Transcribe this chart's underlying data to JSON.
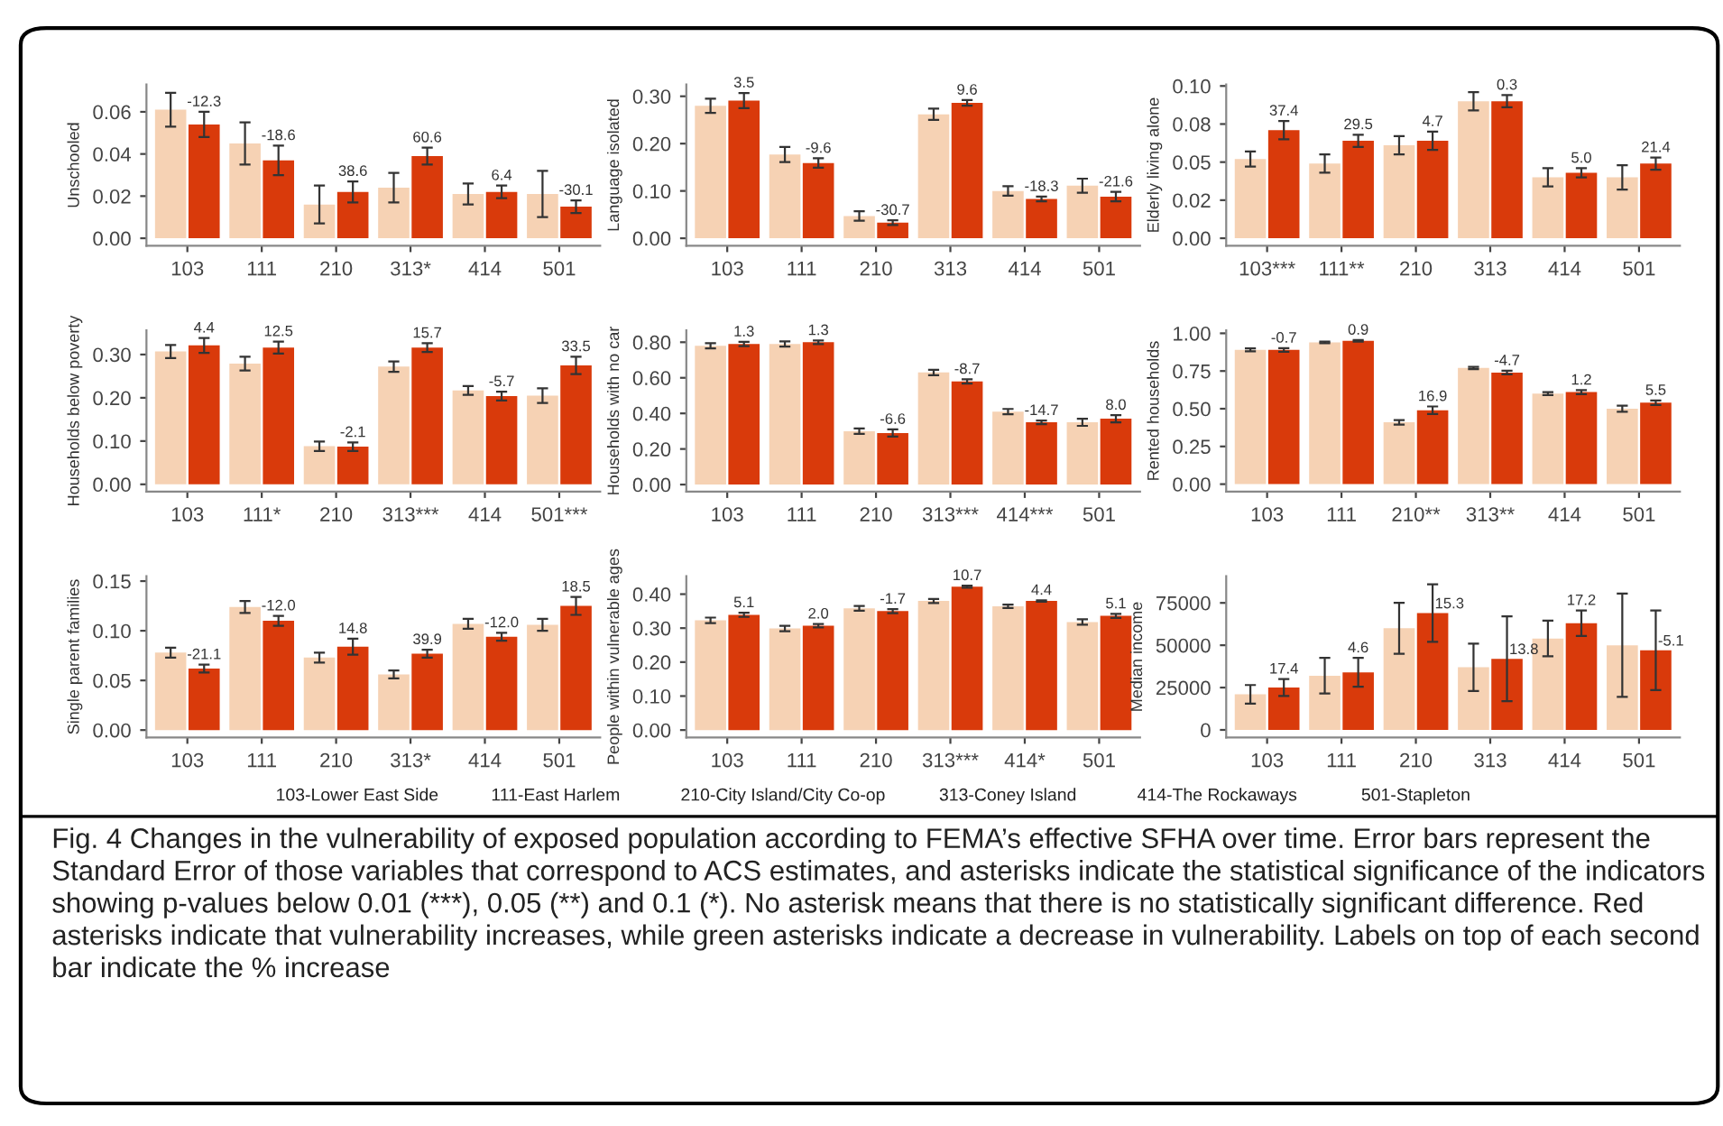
{
  "chart_data": [
    {
      "type": "bar",
      "ylabel": "Unschooled",
      "categories": [
        "103",
        "111",
        "210",
        "313*",
        "414",
        "501"
      ],
      "ylim": [
        -0.0036,
        0.073
      ],
      "yticks": [
        {
          "value": 0,
          "label": "0.00"
        },
        {
          "value": 0.02,
          "label": "0.02"
        },
        {
          "value": 0.04,
          "label": "0.04"
        },
        {
          "value": 0.06,
          "label": "0.06"
        }
      ],
      "series": [
        {
          "color": "#f6d2b4",
          "values": [
            0.061,
            0.045,
            0.016,
            0.024,
            0.021,
            0.021
          ],
          "errors": [
            0.008,
            0.01,
            0.009,
            0.007,
            0.005,
            0.011
          ]
        },
        {
          "color": "#d93a0b",
          "values": [
            0.054,
            0.037,
            0.022,
            0.039,
            0.022,
            0.015
          ],
          "errors": [
            0.006,
            0.007,
            0.005,
            0.004,
            0.003,
            0.003
          ]
        }
      ],
      "annotations": [
        {
          "text": "-12.3",
          "x": "103",
          "y": 0.054
        },
        {
          "text": "-18.6",
          "x": "111",
          "y": 0.037
        },
        {
          "text": "38.6",
          "x": "210",
          "y": 0.022
        },
        {
          "text": "60.6",
          "x": "313*",
          "y": 0.039
        },
        {
          "text": "6.4",
          "x": "414",
          "y": 0.022
        },
        {
          "text": "-30.1",
          "x": "501",
          "y": 0.015
        }
      ]
    },
    {
      "type": "bar",
      "ylabel": "Language isolated",
      "categories": [
        "103",
        "111",
        "210",
        "313",
        "414",
        "501"
      ],
      "ylim": [
        -0.016,
        0.325
      ],
      "yticks": [
        {
          "value": 0,
          "label": "0.00"
        },
        {
          "value": 0.1,
          "label": "0.10"
        },
        {
          "value": 0.2,
          "label": "0.20"
        },
        {
          "value": 0.3,
          "label": "0.30"
        }
      ],
      "series": [
        {
          "color": "#f6d2b4",
          "values": [
            0.28,
            0.177,
            0.047,
            0.262,
            0.1,
            0.111
          ],
          "errors": [
            0.015,
            0.016,
            0.01,
            0.012,
            0.01,
            0.015
          ]
        },
        {
          "color": "#d93a0b",
          "values": [
            0.291,
            0.159,
            0.033,
            0.286,
            0.083,
            0.088
          ],
          "errors": [
            0.016,
            0.01,
            0.005,
            0.006,
            0.005,
            0.01
          ]
        }
      ],
      "annotations": [
        {
          "text": "3.5",
          "x": "103",
          "y": 0.291
        },
        {
          "text": "-9.6",
          "x": "111",
          "y": 0.159
        },
        {
          "text": "-30.7",
          "x": "210",
          "y": 0.033
        },
        {
          "text": "9.6",
          "x": "313",
          "y": 0.286
        },
        {
          "text": "-18.3",
          "x": "414",
          "y": 0.083
        },
        {
          "text": "-21.6",
          "x": "501",
          "y": 0.088
        }
      ]
    },
    {
      "type": "bar",
      "ylabel": "Elderly living alone",
      "categories": [
        "103***",
        "111**",
        "210",
        "313",
        "414",
        "501"
      ],
      "ylim": [
        -0.005,
        0.101
      ],
      "yticks": [
        {
          "value": 0,
          "label": "0.00"
        },
        {
          "value": 0.025,
          "label": "0.02"
        },
        {
          "value": 0.05,
          "label": "0.05"
        },
        {
          "value": 0.075,
          "label": "0.08"
        },
        {
          "value": 0.1,
          "label": "0.10"
        }
      ],
      "series": [
        {
          "color": "#f6d2b4",
          "values": [
            0.052,
            0.049,
            0.061,
            0.09,
            0.04,
            0.04
          ],
          "errors": [
            0.005,
            0.006,
            0.006,
            0.006,
            0.006,
            0.008
          ]
        },
        {
          "color": "#d93a0b",
          "values": [
            0.071,
            0.064,
            0.064,
            0.09,
            0.043,
            0.049
          ],
          "errors": [
            0.006,
            0.004,
            0.006,
            0.004,
            0.003,
            0.004
          ]
        }
      ],
      "annotations": [
        {
          "text": "37.4",
          "x": "103***",
          "y": 0.071
        },
        {
          "text": "29.5",
          "x": "111**",
          "y": 0.064
        },
        {
          "text": "4.7",
          "x": "210",
          "y": 0.064
        },
        {
          "text": "0.3",
          "x": "313",
          "y": 0.09
        },
        {
          "text": "5.0",
          "x": "414",
          "y": 0.043
        },
        {
          "text": "21.4",
          "x": "501",
          "y": 0.049
        }
      ]
    },
    {
      "type": "bar",
      "ylabel": "Households below poverty",
      "categories": [
        "103",
        "111*",
        "210",
        "313***",
        "414",
        "501***"
      ],
      "ylim": [
        -0.017,
        0.356
      ],
      "yticks": [
        {
          "value": 0,
          "label": "0.00"
        },
        {
          "value": 0.1,
          "label": "0.10"
        },
        {
          "value": 0.2,
          "label": "0.20"
        },
        {
          "value": 0.3,
          "label": "0.30"
        }
      ],
      "series": [
        {
          "color": "#f6d2b4",
          "values": [
            0.307,
            0.279,
            0.088,
            0.272,
            0.217,
            0.205
          ],
          "errors": [
            0.015,
            0.016,
            0.011,
            0.012,
            0.01,
            0.017
          ]
        },
        {
          "color": "#d93a0b",
          "values": [
            0.321,
            0.316,
            0.087,
            0.316,
            0.204,
            0.275
          ],
          "errors": [
            0.017,
            0.014,
            0.01,
            0.01,
            0.01,
            0.02
          ]
        }
      ],
      "annotations": [
        {
          "text": "4.4",
          "x": "103",
          "y": 0.321
        },
        {
          "text": "12.5",
          "x": "111*",
          "y": 0.316
        },
        {
          "text": "-2.1",
          "x": "210",
          "y": 0.087
        },
        {
          "text": "15.7",
          "x": "313***",
          "y": 0.316
        },
        {
          "text": "-5.7",
          "x": "414",
          "y": 0.204
        },
        {
          "text": "33.5",
          "x": "501***",
          "y": 0.275
        }
      ]
    },
    {
      "type": "bar",
      "ylabel": "Households with no car",
      "categories": [
        "103",
        "111",
        "210",
        "313***",
        "414***",
        "501"
      ],
      "ylim": [
        -0.04,
        0.867
      ],
      "yticks": [
        {
          "value": 0,
          "label": "0.00"
        },
        {
          "value": 0.2,
          "label": "0.20"
        },
        {
          "value": 0.4,
          "label": "0.40"
        },
        {
          "value": 0.6,
          "label": "0.60"
        },
        {
          "value": 0.8,
          "label": "0.80"
        }
      ],
      "series": [
        {
          "color": "#f6d2b4",
          "values": [
            0.78,
            0.79,
            0.3,
            0.63,
            0.41,
            0.35
          ],
          "errors": [
            0.015,
            0.015,
            0.015,
            0.015,
            0.015,
            0.02
          ]
        },
        {
          "color": "#d93a0b",
          "values": [
            0.79,
            0.8,
            0.29,
            0.58,
            0.35,
            0.37
          ],
          "errors": [
            0.012,
            0.01,
            0.02,
            0.012,
            0.01,
            0.02
          ]
        }
      ],
      "annotations": [
        {
          "text": "1.3",
          "x": "103",
          "y": 0.79
        },
        {
          "text": "1.3",
          "x": "111",
          "y": 0.8
        },
        {
          "text": "-6.6",
          "x": "210",
          "y": 0.29
        },
        {
          "text": "-8.7",
          "x": "313***",
          "y": 0.58
        },
        {
          "text": "-14.7",
          "x": "414***",
          "y": 0.35
        },
        {
          "text": "8.0",
          "x": "501",
          "y": 0.37
        }
      ]
    },
    {
      "type": "bar",
      "ylabel": "Rented households",
      "categories": [
        "103",
        "111",
        "210**",
        "313**",
        "414",
        "501"
      ],
      "ylim": [
        -0.05,
        1.02
      ],
      "yticks": [
        {
          "value": 0,
          "label": "0.00"
        },
        {
          "value": 0.25,
          "label": "0.25"
        },
        {
          "value": 0.5,
          "label": "0.50"
        },
        {
          "value": 0.75,
          "label": "0.75"
        },
        {
          "value": 1.0,
          "label": "1.00"
        }
      ],
      "series": [
        {
          "color": "#f6d2b4",
          "values": [
            0.89,
            0.94,
            0.41,
            0.77,
            0.6,
            0.5
          ],
          "errors": [
            0.01,
            0.005,
            0.015,
            0.008,
            0.01,
            0.02
          ]
        },
        {
          "color": "#d93a0b",
          "values": [
            0.89,
            0.95,
            0.49,
            0.74,
            0.61,
            0.54
          ],
          "errors": [
            0.012,
            0.005,
            0.025,
            0.012,
            0.013,
            0.015
          ]
        }
      ],
      "annotations": [
        {
          "text": "-0.7",
          "x": "103",
          "y": 0.89
        },
        {
          "text": "0.9",
          "x": "111",
          "y": 0.95
        },
        {
          "text": "16.9",
          "x": "210**",
          "y": 0.49
        },
        {
          "text": "-4.7",
          "x": "313**",
          "y": 0.74
        },
        {
          "text": "1.2",
          "x": "414",
          "y": 0.61
        },
        {
          "text": "5.5",
          "x": "501",
          "y": 0.54
        }
      ]
    },
    {
      "type": "bar",
      "ylabel": "Single parent families",
      "categories": [
        "103",
        "111",
        "210",
        "313*",
        "414",
        "501"
      ],
      "ylim": [
        -0.0075,
        0.155
      ],
      "yticks": [
        {
          "value": 0,
          "label": "0.00"
        },
        {
          "value": 0.05,
          "label": "0.05"
        },
        {
          "value": 0.1,
          "label": "0.10"
        },
        {
          "value": 0.15,
          "label": "0.15"
        }
      ],
      "series": [
        {
          "color": "#f6d2b4",
          "values": [
            0.078,
            0.124,
            0.073,
            0.056,
            0.107,
            0.106
          ],
          "errors": [
            0.005,
            0.006,
            0.005,
            0.004,
            0.005,
            0.006
          ]
        },
        {
          "color": "#d93a0b",
          "values": [
            0.062,
            0.11,
            0.084,
            0.077,
            0.094,
            0.125
          ],
          "errors": [
            0.004,
            0.005,
            0.008,
            0.004,
            0.004,
            0.009
          ]
        }
      ],
      "annotations": [
        {
          "text": "-21.1",
          "x": "103",
          "y": 0.062
        },
        {
          "text": "-12.0",
          "x": "111",
          "y": 0.11
        },
        {
          "text": "14.8",
          "x": "210",
          "y": 0.084
        },
        {
          "text": "39.9",
          "x": "313*",
          "y": 0.077
        },
        {
          "text": "-12.0",
          "x": "414",
          "y": 0.094
        },
        {
          "text": "18.5",
          "x": "501",
          "y": 0.125
        }
      ]
    },
    {
      "type": "bar",
      "ylabel": "People within vulnerable ages",
      "categories": [
        "103",
        "111",
        "210",
        "313***",
        "414*",
        "501"
      ],
      "ylim": [
        -0.022,
        0.453
      ],
      "yticks": [
        {
          "value": 0,
          "label": "0.00"
        },
        {
          "value": 0.1,
          "label": "0.10"
        },
        {
          "value": 0.2,
          "label": "0.20"
        },
        {
          "value": 0.3,
          "label": "0.30"
        },
        {
          "value": 0.4,
          "label": "0.40"
        }
      ],
      "series": [
        {
          "color": "#f6d2b4",
          "values": [
            0.323,
            0.299,
            0.358,
            0.38,
            0.364,
            0.318
          ],
          "errors": [
            0.008,
            0.008,
            0.007,
            0.006,
            0.005,
            0.008
          ]
        },
        {
          "color": "#d93a0b",
          "values": [
            0.339,
            0.307,
            0.35,
            0.422,
            0.38,
            0.336
          ],
          "errors": [
            0.006,
            0.005,
            0.006,
            0.003,
            0.002,
            0.006
          ]
        }
      ],
      "annotations": [
        {
          "text": "5.1",
          "x": "103",
          "y": 0.339
        },
        {
          "text": "2.0",
          "x": "111",
          "y": 0.307
        },
        {
          "text": "-1.7",
          "x": "210",
          "y": 0.35
        },
        {
          "text": "10.7",
          "x": "313***",
          "y": 0.422
        },
        {
          "text": "4.4",
          "x": "414*",
          "y": 0.38
        },
        {
          "text": "5.1",
          "x": "501",
          "y": 0.336
        }
      ]
    },
    {
      "type": "bar",
      "ylabel": "Median income",
      "categories": [
        "103",
        "111",
        "210",
        "313",
        "414",
        "501"
      ],
      "ylim": [
        -4500,
        90800
      ],
      "yticks": [
        0,
        25000,
        50000,
        75000
      ],
      "series": [
        {
          "color": "#f6d2b4",
          "values": [
            21000,
            32000,
            60000,
            37000,
            54000,
            50000
          ],
          "errors": [
            5500,
            10500,
            15000,
            14000,
            10500,
            30500
          ]
        },
        {
          "color": "#d93a0b",
          "values": [
            25000,
            34000,
            69000,
            42000,
            63000,
            47000
          ],
          "errors": [
            5000,
            8500,
            17000,
            25000,
            7500,
            23500
          ]
        }
      ],
      "annotations": [
        {
          "text": "17.4",
          "x": "103",
          "y": 25000
        },
        {
          "text": "4.6",
          "x": "111",
          "y": 34000
        },
        {
          "text": "15.3",
          "x": "210",
          "y": 69000
        },
        {
          "text": "13.8",
          "x": "313",
          "y": 42000
        },
        {
          "text": "17.2",
          "x": "414",
          "y": 63000
        },
        {
          "text": "-5.1",
          "x": "501",
          "y": 47000
        }
      ]
    },
    {
      "type": "other",
      "annotations": [
        "103-Lower East Side",
        "111-East Harlem",
        "210-City Island/City Co-op",
        "313-Coney Island",
        "414-The Rockaways",
        "501-Stapleton",
        "Fig. 4 Changes in the vulnerability of exposed population according to FEMA’s effective SFHA over time. Error bars represent the Standard Error of those variables that correspond to ACS estimates, and asterisks indicate the statistical significance of the indicators showing p-values below 0.01 (***), 0.05 (**) and 0.1 (*). No asterisk means that there is no statistically significant difference. Red asterisks indicate that vulnerability increases, while green asterisks indicate a decrease in vulnerability. Labels on top of each second bar indicate the % increase"
      ]
    }
  ]
}
